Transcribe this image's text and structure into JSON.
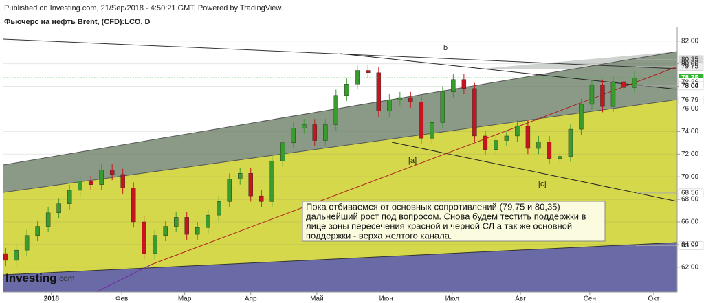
{
  "chart_data": {
    "type": "candlestick",
    "header": "Published on Investing.com, 21/Sep/2018 - 4:50:21 GMT, Powered by TradingView.",
    "title": "Фьючерс на нефть Brent, (CFD):LCO, D",
    "annotations": [
      "b",
      "[a]",
      "[c]"
    ],
    "note": [
      "Пока отбиваемся от основных сопротивлений (79,75 и 80,35)",
      "дальнейший рост под вопросом. Снова будем тестить поддержки в",
      "лице зоны пересечения красной и черной СЛ а так же основной",
      "поддержки - верха желтого канала."
    ],
    "logo": "Investing",
    "logo_suffix": ".com",
    "up_color": "#3a9b2e",
    "down_color": "#c8141e",
    "open": [
      63.2,
      62.6,
      63.5,
      64.8,
      65.6,
      66.8,
      67.6,
      68.8,
      69.6,
      69.3,
      70.6,
      70.2,
      69.0,
      66.0,
      63.2,
      64.8,
      65.6,
      66.4,
      64.9,
      65.5,
      66.6,
      67.8,
      69.8,
      70.3,
      68.3,
      67.8,
      71.4,
      73.0,
      74.3,
      74.6,
      73.2,
      74.6,
      77.2,
      78.2,
      79.4,
      79.2,
      75.8,
      76.8,
      77.0,
      76.6,
      73.4,
      74.8,
      77.5,
      78.6,
      77.8,
      73.6,
      72.4,
      73.2,
      73.6,
      74.5,
      72.5,
      73.1,
      71.6,
      71.8,
      74.2,
      76.4,
      78.1,
      76.2,
      78.4,
      77.9
    ],
    "high": [
      63.7,
      64.0,
      65.3,
      66.1,
      67.3,
      68.1,
      69.3,
      70.1,
      70.1,
      71.1,
      71.1,
      70.7,
      69.5,
      66.5,
      65.3,
      66.1,
      66.9,
      66.9,
      66.0,
      67.1,
      68.3,
      70.3,
      70.8,
      70.8,
      68.8,
      71.9,
      73.5,
      74.8,
      75.1,
      75.1,
      75.1,
      77.7,
      78.7,
      79.9,
      79.9,
      79.7,
      77.3,
      77.5,
      77.5,
      77.1,
      75.3,
      78.0,
      79.1,
      79.1,
      78.3,
      74.1,
      73.7,
      74.1,
      75.0,
      75.0,
      73.6,
      73.6,
      72.3,
      74.7,
      76.9,
      78.6,
      78.6,
      78.9,
      78.9,
      79.3
    ],
    "low": [
      62.1,
      62.1,
      63.0,
      64.3,
      65.1,
      66.3,
      67.1,
      68.3,
      68.8,
      68.8,
      69.7,
      68.5,
      65.5,
      62.7,
      62.7,
      64.3,
      65.1,
      64.4,
      64.4,
      65.0,
      66.1,
      67.3,
      69.3,
      67.8,
      67.3,
      67.3,
      70.9,
      72.5,
      73.8,
      72.7,
      72.7,
      74.1,
      76.7,
      77.7,
      78.7,
      75.3,
      75.3,
      76.3,
      76.1,
      72.9,
      72.9,
      74.3,
      77.0,
      77.3,
      73.1,
      71.9,
      71.9,
      72.7,
      73.1,
      72.0,
      72.0,
      71.1,
      71.1,
      71.3,
      73.7,
      75.9,
      75.7,
      75.7,
      77.4,
      77.4
    ],
    "close": [
      62.6,
      63.5,
      64.8,
      65.6,
      66.8,
      67.6,
      68.8,
      69.6,
      69.3,
      70.6,
      70.2,
      69.0,
      66.0,
      63.2,
      64.8,
      65.6,
      66.4,
      64.9,
      65.5,
      66.6,
      67.8,
      69.8,
      70.3,
      68.3,
      67.8,
      71.4,
      73.0,
      74.3,
      74.6,
      73.2,
      74.6,
      77.2,
      78.2,
      79.4,
      79.2,
      75.8,
      76.8,
      77.0,
      76.6,
      73.4,
      74.8,
      77.5,
      78.6,
      77.8,
      73.6,
      72.4,
      73.2,
      73.6,
      74.5,
      72.5,
      73.1,
      71.6,
      71.8,
      74.2,
      76.4,
      78.1,
      76.2,
      78.4,
      77.9,
      78.75
    ],
    "xlim": [
      -0.2,
      63.0
    ],
    "xticks": [
      {
        "value": 4.3,
        "label": "2018"
      },
      {
        "value": 10.9,
        "label": "Фев"
      },
      {
        "value": 16.8,
        "label": "Мар"
      },
      {
        "value": 23.0,
        "label": "Апр"
      },
      {
        "value": 29.2,
        "label": "Май"
      },
      {
        "value": 35.7,
        "label": "Июн"
      },
      {
        "value": 41.9,
        "label": "Июл"
      },
      {
        "value": 48.3,
        "label": "Авг"
      },
      {
        "value": 54.8,
        "label": "Сен"
      },
      {
        "value": 60.8,
        "label": "Окт"
      }
    ],
    "ylim": [
      59.8,
      83.2
    ],
    "yticks": [
      {
        "value": 62,
        "label": "62.00"
      },
      {
        "value": 64,
        "label": "64.00"
      },
      {
        "value": 66,
        "label": "66.00"
      },
      {
        "value": 68,
        "label": "68.00"
      },
      {
        "value": 70,
        "label": "70.00"
      },
      {
        "value": 72,
        "label": "72.00"
      },
      {
        "value": 74,
        "label": "74.00"
      },
      {
        "value": 76,
        "label": "76.00"
      },
      {
        "value": 78,
        "label": "78.00"
      },
      {
        "value": 80,
        "label": "80.00"
      },
      {
        "value": 82,
        "label": "82.00"
      }
    ],
    "levels": [
      {
        "value": 80.35,
        "bg": "#d8d8d8",
        "fg": "#222"
      },
      {
        "value": 79.75,
        "bg": "#eeeeee",
        "fg": "#222"
      },
      {
        "value": 78.75,
        "bg": "#2fb52f",
        "fg": "#fff"
      },
      {
        "value": 78.36,
        "bg": "#ffffff",
        "fg": "#222"
      },
      {
        "value": 78.04,
        "bg": "#ffffff",
        "fg": "#222"
      },
      {
        "value": 76.79,
        "bg": "#ffffff",
        "fg": "#222"
      },
      {
        "value": 68.56,
        "bg": "#ffffff",
        "fg": "#222"
      },
      {
        "value": 63.92,
        "bg": "#ffffff",
        "fg": "#222"
      }
    ],
    "last_value": 78.75
  }
}
